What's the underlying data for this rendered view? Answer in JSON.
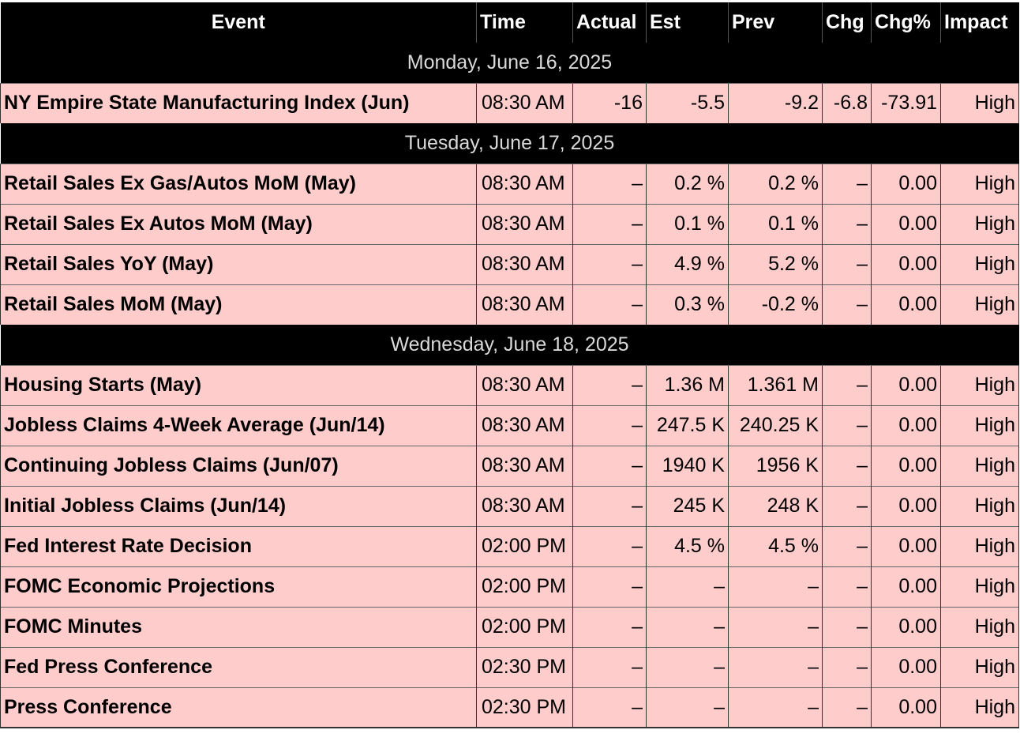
{
  "columns": {
    "event": "Event",
    "time": "Time",
    "actual": "Actual",
    "est": "Est",
    "prev": "Prev",
    "chg": "Chg",
    "chg_pct": "Chg%",
    "impact": "Impact"
  },
  "days": [
    {
      "date": "Monday, June 16, 2025",
      "events": [
        {
          "event": "NY Empire State Manufacturing Index (Jun)",
          "time": "08:30 AM",
          "actual": "-16",
          "est": "-5.5",
          "prev": "-9.2",
          "chg": "-6.8",
          "chg_pct": "-73.91",
          "impact": "High"
        }
      ]
    },
    {
      "date": "Tuesday, June 17, 2025",
      "events": [
        {
          "event": "Retail Sales Ex Gas/Autos MoM (May)",
          "time": "08:30 AM",
          "actual": "–",
          "est": "0.2 %",
          "prev": "0.2 %",
          "chg": "–",
          "chg_pct": "0.00",
          "impact": "High"
        },
        {
          "event": "Retail Sales Ex Autos MoM (May)",
          "time": "08:30 AM",
          "actual": "–",
          "est": "0.1 %",
          "prev": "0.1 %",
          "chg": "–",
          "chg_pct": "0.00",
          "impact": "High"
        },
        {
          "event": "Retail Sales YoY (May)",
          "time": "08:30 AM",
          "actual": "–",
          "est": "4.9 %",
          "prev": "5.2 %",
          "chg": "–",
          "chg_pct": "0.00",
          "impact": "High"
        },
        {
          "event": "Retail Sales MoM (May)",
          "time": "08:30 AM",
          "actual": "–",
          "est": "0.3 %",
          "prev": "-0.2 %",
          "chg": "–",
          "chg_pct": "0.00",
          "impact": "High"
        }
      ]
    },
    {
      "date": "Wednesday, June 18, 2025",
      "events": [
        {
          "event": "Housing Starts (May)",
          "time": "08:30 AM",
          "actual": "–",
          "est": "1.36 M",
          "prev": "1.361 M",
          "chg": "–",
          "chg_pct": "0.00",
          "impact": "High"
        },
        {
          "event": "Jobless Claims 4-Week Average (Jun/14)",
          "time": "08:30 AM",
          "actual": "–",
          "est": "247.5 K",
          "prev": "240.25 K",
          "chg": "–",
          "chg_pct": "0.00",
          "impact": "High"
        },
        {
          "event": "Continuing Jobless Claims (Jun/07)",
          "time": "08:30 AM",
          "actual": "–",
          "est": "1940 K",
          "prev": "1956 K",
          "chg": "–",
          "chg_pct": "0.00",
          "impact": "High"
        },
        {
          "event": "Initial Jobless Claims (Jun/14)",
          "time": "08:30 AM",
          "actual": "–",
          "est": "245 K",
          "prev": "248 K",
          "chg": "–",
          "chg_pct": "0.00",
          "impact": "High"
        },
        {
          "event": "Fed Interest Rate Decision",
          "time": "02:00 PM",
          "actual": "–",
          "est": "4.5 %",
          "prev": "4.5 %",
          "chg": "–",
          "chg_pct": "0.00",
          "impact": "High"
        },
        {
          "event": "FOMC Economic Projections",
          "time": "02:00 PM",
          "actual": "–",
          "est": "–",
          "prev": "–",
          "chg": "–",
          "chg_pct": "0.00",
          "impact": "High"
        },
        {
          "event": "FOMC Minutes",
          "time": "02:00 PM",
          "actual": "–",
          "est": "–",
          "prev": "–",
          "chg": "–",
          "chg_pct": "0.00",
          "impact": "High"
        },
        {
          "event": "Fed Press Conference",
          "time": "02:30 PM",
          "actual": "–",
          "est": "–",
          "prev": "–",
          "chg": "–",
          "chg_pct": "0.00",
          "impact": "High"
        },
        {
          "event": "Press Conference",
          "time": "02:30 PM",
          "actual": "–",
          "est": "–",
          "prev": "–",
          "chg": "–",
          "chg_pct": "0.00",
          "impact": "High"
        }
      ]
    }
  ]
}
